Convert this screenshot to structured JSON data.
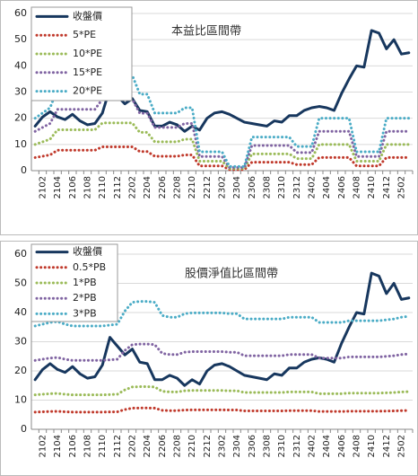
{
  "chart_data": [
    {
      "type": "line",
      "title": "本益比區間帶",
      "categories": [
        null,
        "2102",
        null,
        "2104",
        null,
        "2106",
        null,
        "2108",
        null,
        "2110",
        null,
        "2112",
        null,
        "2202",
        null,
        "2204",
        null,
        "2206",
        null,
        "2208",
        null,
        "2210",
        null,
        "2212",
        null,
        "2302",
        null,
        "2304",
        null,
        "2306",
        null,
        "2308",
        null,
        "2310",
        null,
        "2312",
        null,
        "2402",
        null,
        "2404",
        null,
        "2406",
        null,
        "2408",
        null,
        "2410",
        null,
        "2412",
        null,
        "2502",
        null
      ],
      "ylim": [
        0,
        60
      ],
      "yticks": [
        0,
        10,
        20,
        30,
        40,
        50,
        60
      ],
      "grid": true,
      "series": [
        {
          "name": "收盤價",
          "color": "#17375e",
          "style": "solid",
          "values": [
            17,
            20.5,
            22.5,
            20.5,
            19.5,
            21.5,
            19,
            17.5,
            18,
            22,
            31.5,
            28.5,
            25.5,
            27.5,
            23,
            22.5,
            17,
            17,
            18.5,
            17.5,
            15,
            17,
            15.5,
            20,
            22,
            22.5,
            21.5,
            20,
            18.5,
            18,
            17.5,
            17,
            19,
            18.5,
            21,
            21,
            23,
            24,
            24.5,
            24,
            23,
            29.5,
            35,
            40,
            39.5,
            53.5,
            52.5,
            46.5,
            50,
            44.5,
            45
          ]
        },
        {
          "name": "5*PE",
          "color": "#c0392b",
          "style": "dotted",
          "values": [
            5,
            5.5,
            6,
            7.8,
            7.8,
            7.8,
            7.8,
            7.8,
            7.8,
            9.1,
            9.1,
            9.1,
            9.1,
            9.1,
            7.3,
            7.3,
            5.5,
            5.5,
            5.5,
            5.5,
            6,
            6,
            1.8,
            1.8,
            1.8,
            1.8,
            0.4,
            0.4,
            0.4,
            3.2,
            3.2,
            3.2,
            3.2,
            3.2,
            3.2,
            2.3,
            2.3,
            2.3,
            5,
            5,
            5,
            5,
            5,
            1.8,
            1.8,
            1.8,
            1.8,
            5,
            5,
            5,
            5
          ]
        },
        {
          "name": "10*PE",
          "color": "#9bbb59",
          "style": "dotted",
          "values": [
            10,
            11,
            12,
            15.6,
            15.6,
            15.6,
            15.6,
            15.6,
            15.6,
            18.2,
            18.2,
            18.2,
            18.2,
            18.2,
            14.6,
            14.6,
            11,
            11,
            11,
            11,
            12,
            12,
            3.6,
            3.6,
            3.6,
            3.6,
            0.8,
            0.8,
            0.8,
            6.4,
            6.4,
            6.4,
            6.4,
            6.4,
            6.4,
            4.6,
            4.6,
            4.6,
            10,
            10,
            10,
            10,
            10,
            3.6,
            3.6,
            3.6,
            3.6,
            10,
            10,
            10,
            10
          ]
        },
        {
          "name": "15*PE",
          "color": "#8064a2",
          "style": "dotted",
          "values": [
            15,
            16.5,
            18,
            23.4,
            23.4,
            23.4,
            23.4,
            23.4,
            23.4,
            27.3,
            27.3,
            27.3,
            27.3,
            27.3,
            21.9,
            21.9,
            16.5,
            16.5,
            16.5,
            16.5,
            18,
            18,
            5.4,
            5.4,
            5.4,
            5.4,
            1.2,
            1.2,
            1.2,
            9.6,
            9.6,
            9.6,
            9.6,
            9.6,
            9.6,
            6.9,
            6.9,
            6.9,
            15,
            15,
            15,
            15,
            15,
            5.4,
            5.4,
            5.4,
            5.4,
            15,
            15,
            15,
            15
          ]
        },
        {
          "name": "20*PE",
          "color": "#4bacc6",
          "style": "dotted",
          "values": [
            20,
            22,
            24,
            31.2,
            31.2,
            31.2,
            31.2,
            31.2,
            31.2,
            36.4,
            36.4,
            36.4,
            36.4,
            36.4,
            29.2,
            29.2,
            22,
            22,
            22,
            22,
            24,
            24,
            7.2,
            7.2,
            7.2,
            7.2,
            1.6,
            1.6,
            1.6,
            12.8,
            12.8,
            12.8,
            12.8,
            12.8,
            12.8,
            9.2,
            9.2,
            9.2,
            20,
            20,
            20,
            20,
            20,
            7.2,
            7.2,
            7.2,
            7.2,
            20,
            20,
            20,
            20
          ]
        }
      ]
    },
    {
      "type": "line",
      "title": "股價淨值比區間帶",
      "categories": [
        null,
        "2102",
        null,
        "2104",
        null,
        "2106",
        null,
        "2108",
        null,
        "2110",
        null,
        "2112",
        null,
        "2202",
        null,
        "2204",
        null,
        "2206",
        null,
        "2208",
        null,
        "2210",
        null,
        "2212",
        null,
        "2302",
        null,
        "2304",
        null,
        "2306",
        null,
        "2308",
        null,
        "2310",
        null,
        "2312",
        null,
        "2402",
        null,
        "2404",
        null,
        "2406",
        null,
        "2408",
        null,
        "2410",
        null,
        "2412",
        null,
        "2502",
        null
      ],
      "ylim": [
        0,
        60
      ],
      "yticks": [
        0,
        10,
        20,
        30,
        40,
        50,
        60
      ],
      "grid": true,
      "series": [
        {
          "name": "收盤價",
          "color": "#17375e",
          "style": "solid",
          "values": [
            17,
            20.5,
            22.5,
            20.5,
            19.5,
            21.5,
            19,
            17.5,
            18,
            22,
            31.5,
            28.5,
            25.5,
            27.5,
            23,
            22.5,
            17,
            17,
            18.5,
            17.5,
            15,
            17,
            15.5,
            20,
            22,
            22.5,
            21.5,
            20,
            18.5,
            18,
            17.5,
            17,
            19,
            18.5,
            21,
            21,
            23,
            24,
            24.5,
            24,
            23,
            29.5,
            35,
            40,
            39.5,
            53.5,
            52.5,
            46.5,
            50,
            44.5,
            45
          ]
        },
        {
          "name": "0.5*PB",
          "color": "#c0392b",
          "style": "dotted",
          "values": [
            5.9,
            6,
            6.1,
            6.15,
            6,
            5.9,
            5.9,
            5.9,
            5.9,
            5.9,
            5.95,
            6,
            6.75,
            7.25,
            7.3,
            7.3,
            7.25,
            6.5,
            6.4,
            6.4,
            6.6,
            6.65,
            6.65,
            6.65,
            6.65,
            6.65,
            6.6,
            6.6,
            6.3,
            6.3,
            6.3,
            6.3,
            6.3,
            6.3,
            6.4,
            6.4,
            6.4,
            6.4,
            6.1,
            6.1,
            6.1,
            6.1,
            6.2,
            6.2,
            6.2,
            6.2,
            6.2,
            6.25,
            6.3,
            6.4,
            6.45
          ]
        },
        {
          "name": "1*PB",
          "color": "#9bbb59",
          "style": "dotted",
          "values": [
            11.8,
            12,
            12.2,
            12.3,
            12,
            11.8,
            11.8,
            11.8,
            11.8,
            11.8,
            11.9,
            12,
            13.5,
            14.5,
            14.6,
            14.6,
            14.5,
            13,
            12.8,
            12.8,
            13.2,
            13.3,
            13.3,
            13.3,
            13.3,
            13.3,
            13.2,
            13.2,
            12.6,
            12.6,
            12.6,
            12.6,
            12.6,
            12.6,
            12.8,
            12.8,
            12.8,
            12.8,
            12.2,
            12.2,
            12.2,
            12.2,
            12.4,
            12.4,
            12.4,
            12.4,
            12.4,
            12.5,
            12.6,
            12.8,
            12.9
          ]
        },
        {
          "name": "2*PB",
          "color": "#8064a2",
          "style": "dotted",
          "values": [
            23.6,
            24,
            24.4,
            24.6,
            24,
            23.6,
            23.6,
            23.6,
            23.6,
            23.6,
            23.8,
            24,
            27,
            29,
            29.2,
            29.2,
            29,
            26,
            25.6,
            25.6,
            26.4,
            26.6,
            26.6,
            26.6,
            26.6,
            26.6,
            26.4,
            26.4,
            25.2,
            25.2,
            25.2,
            25.2,
            25.2,
            25.2,
            25.6,
            25.6,
            25.6,
            25.6,
            24.4,
            24.4,
            24.4,
            24.4,
            24.8,
            24.8,
            24.8,
            24.8,
            24.8,
            25,
            25.2,
            25.6,
            25.8
          ]
        },
        {
          "name": "3*PB",
          "color": "#4bacc6",
          "style": "dotted",
          "values": [
            35.4,
            36,
            36.6,
            36.9,
            36,
            35.4,
            35.4,
            35.4,
            35.4,
            35.4,
            35.7,
            36,
            40.5,
            43.5,
            43.8,
            43.8,
            43.5,
            39,
            38.4,
            38.4,
            39.6,
            39.9,
            39.9,
            39.9,
            39.9,
            39.9,
            39.6,
            39.6,
            37.8,
            37.8,
            37.8,
            37.8,
            37.8,
            37.8,
            38.4,
            38.4,
            38.4,
            38.4,
            36.6,
            36.6,
            36.6,
            36.6,
            37.2,
            37.2,
            37.2,
            37.2,
            37.2,
            37.5,
            37.8,
            38.4,
            38.7
          ]
        }
      ]
    }
  ]
}
